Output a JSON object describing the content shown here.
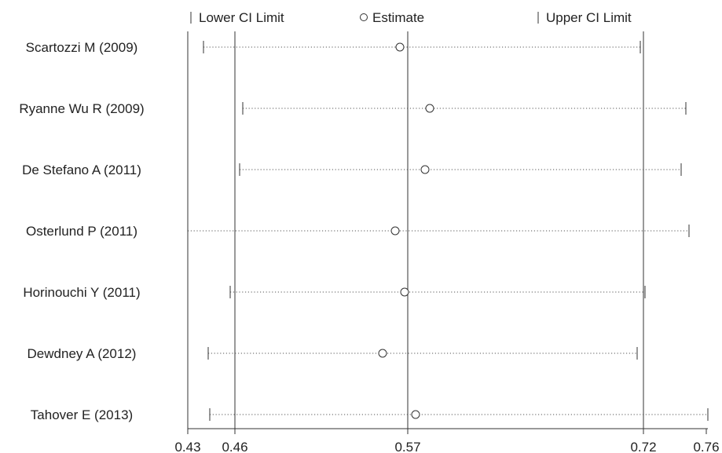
{
  "chart_data": {
    "type": "forest",
    "legend": {
      "lower": "Lower CI Limit",
      "estimate": "Estimate",
      "upper": "Upper CI Limit",
      "placement": "top"
    },
    "studies": [
      {
        "label": "Scartozzi M (2009)",
        "lower": 0.44,
        "estimate": 0.565,
        "upper": 0.718
      },
      {
        "label": "Ryanne Wu R (2009)",
        "lower": 0.465,
        "estimate": 0.584,
        "upper": 0.747
      },
      {
        "label": "De Stefano A (2011)",
        "lower": 0.463,
        "estimate": 0.581,
        "upper": 0.744
      },
      {
        "label": "Osterlund P (2011)",
        "lower": 0.43,
        "estimate": 0.562,
        "upper": 0.749
      },
      {
        "label": "Horinouchi Y (2011)",
        "lower": 0.457,
        "estimate": 0.568,
        "upper": 0.721
      },
      {
        "label": "Dewdney A (2012)",
        "lower": 0.443,
        "estimate": 0.554,
        "upper": 0.716
      },
      {
        "label": "Tahover E (2013)",
        "lower": 0.444,
        "estimate": 0.575,
        "upper": 0.761
      }
    ],
    "x_ticks": [
      0.43,
      0.46,
      0.57,
      0.72,
      0.76
    ],
    "x_tick_labels": [
      "0.43",
      "0.46",
      "0.57",
      "0.72",
      "0.76"
    ],
    "xlim": [
      0.43,
      0.761
    ],
    "reference_lines": [
      0.43,
      0.46,
      0.57,
      0.72
    ],
    "grid": false
  }
}
